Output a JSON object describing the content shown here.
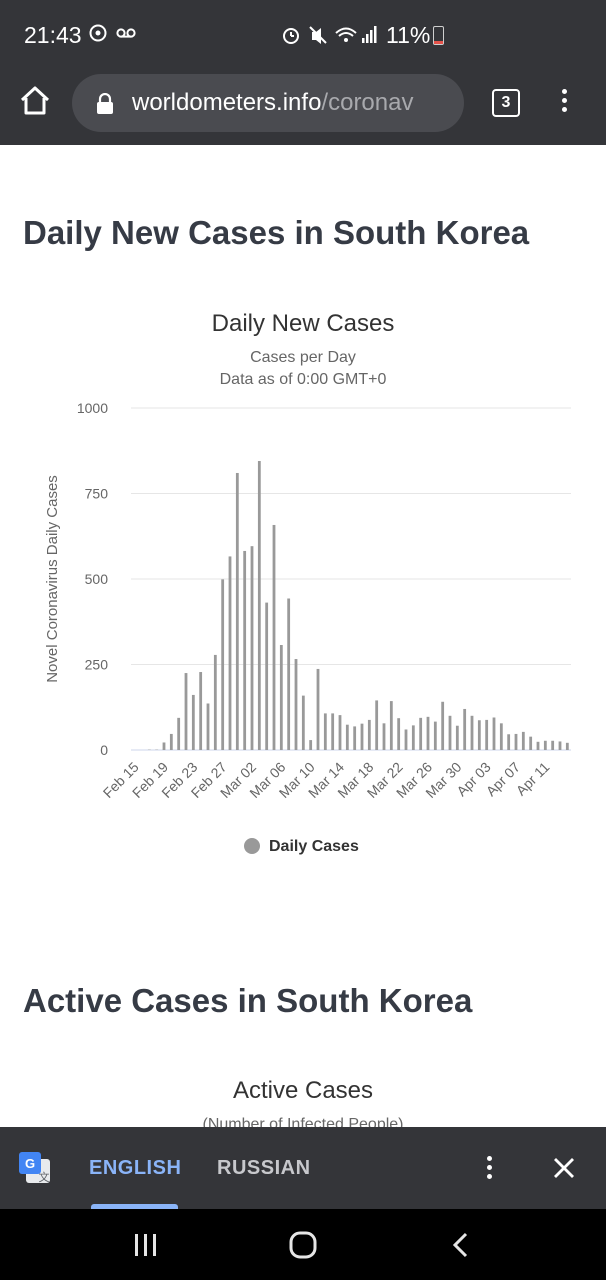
{
  "status_bar": {
    "time": "21:43",
    "battery": "11%",
    "left_icons": [
      "sync-icon",
      "voicemail-icon"
    ],
    "right_icons": [
      "alarm-icon",
      "mute-icon",
      "wifi-icon",
      "signal-icon",
      "battery-icon"
    ]
  },
  "browser": {
    "url_host": "worldometers.info",
    "url_rest": "/coronav",
    "tab_count": "3"
  },
  "page": {
    "section1_title": "Daily New Cases in South Korea",
    "section2_title": "Active Cases in South Korea",
    "chart2_title": "Active Cases",
    "chart2_subtitle": "(Number of Infected People)"
  },
  "chart_data": {
    "type": "bar",
    "title": "Daily New Cases",
    "subtitle_lines": [
      "Cases per Day",
      "Data as of 0:00 GMT+0"
    ],
    "ylabel": "Novel Coronavirus Daily Cases",
    "xlabel": "",
    "ylim": [
      0,
      1000
    ],
    "yticks": [
      0,
      250,
      500,
      750,
      1000
    ],
    "grid": true,
    "legend_position": "bottom",
    "xtick_labels": [
      "Feb 15",
      "Feb 19",
      "Feb 23",
      "Feb 27",
      "Mar 02",
      "Mar 06",
      "Mar 10",
      "Mar 14",
      "Mar 18",
      "Mar 22",
      "Mar 26",
      "Mar 30",
      "Apr 03",
      "Apr 07",
      "Apr 11"
    ],
    "categories": [
      "Feb 15",
      "Feb 16",
      "Feb 17",
      "Feb 18",
      "Feb 19",
      "Feb 20",
      "Feb 21",
      "Feb 22",
      "Feb 23",
      "Feb 24",
      "Feb 25",
      "Feb 26",
      "Feb 27",
      "Feb 28",
      "Feb 29",
      "Mar 01",
      "Mar 02",
      "Mar 03",
      "Mar 04",
      "Mar 05",
      "Mar 06",
      "Mar 07",
      "Mar 08",
      "Mar 09",
      "Mar 10",
      "Mar 11",
      "Mar 12",
      "Mar 13",
      "Mar 14",
      "Mar 15",
      "Mar 16",
      "Mar 17",
      "Mar 18",
      "Mar 19",
      "Mar 20",
      "Mar 21",
      "Mar 22",
      "Mar 23",
      "Mar 24",
      "Mar 25",
      "Mar 26",
      "Mar 27",
      "Mar 28",
      "Mar 29",
      "Mar 30",
      "Mar 31",
      "Apr 01",
      "Apr 02",
      "Apr 03",
      "Apr 04",
      "Apr 05",
      "Apr 06",
      "Apr 07",
      "Apr 08",
      "Apr 09",
      "Apr 10",
      "Apr 11",
      "Apr 12",
      "Apr 13",
      "Apr 14"
    ],
    "series": [
      {
        "name": "Daily Cases",
        "color": "#999999",
        "values": [
          0,
          0,
          1,
          1,
          22,
          47,
          94,
          225,
          161,
          228,
          136,
          278,
          499,
          566,
          810,
          582,
          596,
          845,
          431,
          658,
          307,
          443,
          266,
          159,
          29,
          237,
          107,
          107,
          102,
          74,
          69,
          77,
          88,
          145,
          78,
          143,
          93,
          60,
          72,
          94,
          97,
          83,
          141,
          100,
          71,
          120,
          100,
          87,
          88,
          95,
          78,
          46,
          47,
          53,
          39,
          24,
          27,
          27,
          25,
          21
        ]
      }
    ]
  },
  "translate_bar": {
    "lang_english": "ENGLISH",
    "lang_russian": "RUSSIAN"
  }
}
